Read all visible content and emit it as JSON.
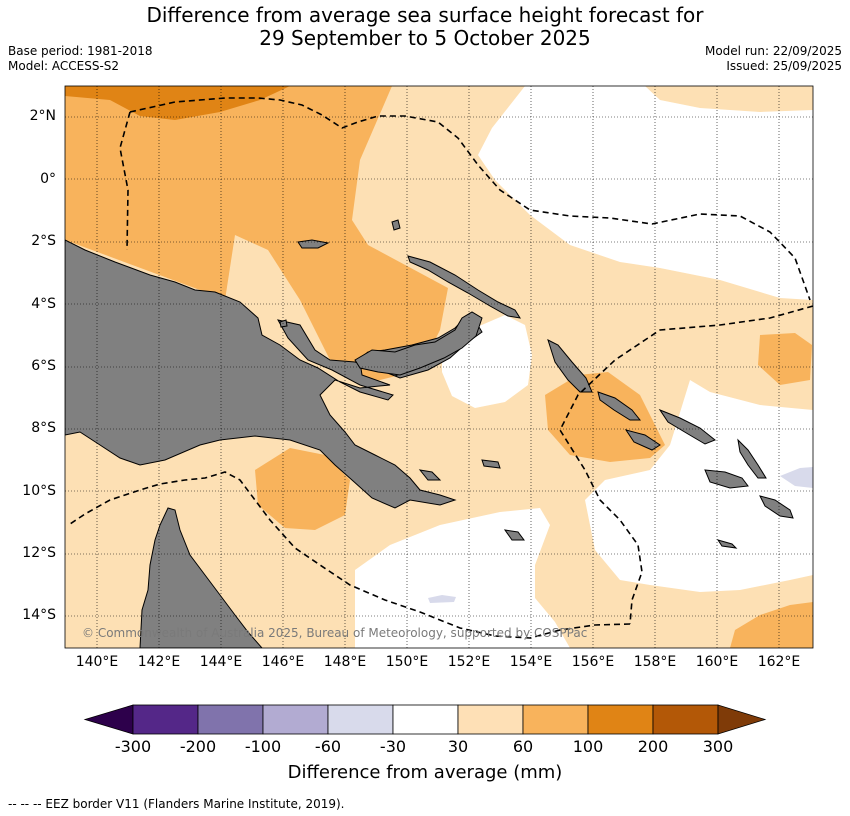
{
  "title": {
    "line1": "Difference from average sea surface height forecast for",
    "line2": "29 September to 5 October 2025"
  },
  "meta": {
    "base_period": "Base period: 1981-2018",
    "model": "Model: ACCESS-S2",
    "model_run": "Model run: 22/09/2025",
    "issued": "Issued: 25/09/2025"
  },
  "map": {
    "lat_labels": [
      "2°N",
      "0°",
      "2°S",
      "4°S",
      "6°S",
      "8°S",
      "10°S",
      "12°S",
      "14°S"
    ],
    "lon_labels": [
      "140°E",
      "142°E",
      "144°E",
      "146°E",
      "148°E",
      "150°E",
      "152°E",
      "154°E",
      "156°E",
      "158°E",
      "160°E",
      "162°E"
    ],
    "copyright": "© Commonwealth of Australia 2025, Bureau of Meteorology, supported by COSPPac",
    "colors": {
      "land": "#808080",
      "ocean_base": "#fde0b4",
      "c30": "#ffffff",
      "c60": "#f8b35c",
      "c100": "#e08415",
      "c200": "#b35807",
      "neg30": "#d8daeb"
    }
  },
  "colorbar": {
    "ticks": [
      "-300",
      "-200",
      "-100",
      "-60",
      "-30",
      "30",
      "60",
      "100",
      "200",
      "300"
    ],
    "label": "Difference from average (mm)",
    "colors": [
      "#542788",
      "#8073ac",
      "#b2abd2",
      "#d8daeb",
      "#ffffff",
      "#fee0b6",
      "#f8b35c",
      "#e08415",
      "#b35807"
    ],
    "under_color": "#2d004b",
    "over_color": "#7f3b08"
  },
  "footnote": "-- -- -- EEZ border V11 (Flanders Marine Institute, 2019)."
}
